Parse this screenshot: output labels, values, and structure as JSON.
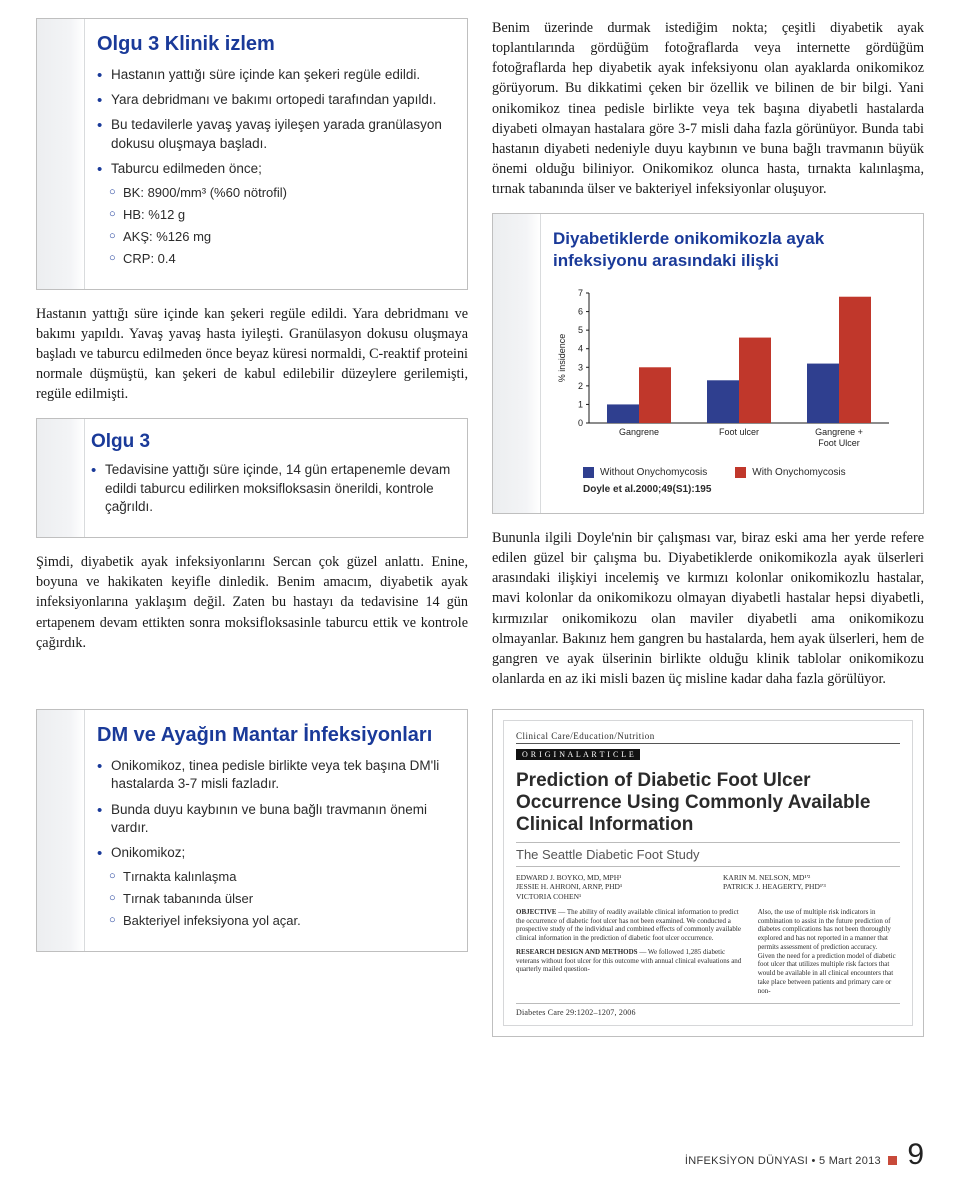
{
  "slide1": {
    "title": "Olgu 3 Klinik izlem",
    "items": [
      "Hastanın yattığı süre içinde kan şekeri regüle edildi.",
      "Yara debridmanı ve bakımı ortopedi tarafından yapıldı.",
      "Bu tedavilerle yavaş yavaş iyileşen yarada granülasyon dokusu oluşmaya başladı.",
      "Taburcu edilmeden önce;"
    ],
    "subitems": [
      "BK: 8900/mm³ (%60 nötrofil)",
      "HB: %12 g",
      "AKŞ: %126 mg",
      "CRP: 0.4"
    ]
  },
  "para1": "Hastanın yattığı süre içinde kan şekeri regüle edildi. Yara debridmanı ve bakımı yapıldı. Yavaş yavaş hasta iyileşti. Granülasyon dokusu oluşmaya başladı ve taburcu edilmeden önce beyaz küresi normaldi, C-reaktif proteini normale düşmüştü, kan şekeri de kabul edilebilir düzeylere gerilemişti, regüle edilmişti.",
  "slide2": {
    "title": "Olgu 3",
    "items": [
      "Tedavisine yattığı süre içinde, 14 gün ertapenemle devam edildi taburcu edilirken moksifloksasin önerildi, kontrole çağrıldı."
    ]
  },
  "para2": "Şimdi, diyabetik ayak infeksiyonlarını Sercan çok güzel anlattı. Enine, boyuna ve hakikaten keyifle dinledik. Benim amacım, diyabetik ayak infeksiyonlarına yaklaşım değil. Zaten bu hastayı da tedavisine 14 gün ertapenem devam ettikten sonra moksifloksasinle taburcu ettik ve kontrole çağırdık.",
  "para_top_right": "Benim üzerinde durmak istediğim nokta; çeşitli diyabetik ayak toplantılarında gördüğüm fotoğraflarda veya internette gördüğüm fotoğraflarda hep diyabetik ayak infeksiyonu olan ayaklarda onikomikoz görüyorum. Bu dikkatimi çeken bir özellik ve bilinen de bir bilgi. Yani onikomikoz tinea pedisle birlikte veya tek başına diyabetli hastalarda diyabeti olmayan hastalara göre 3-7 misli daha fazla görünüyor. Bunda tabi hastanın diyabeti nedeniyle duyu kaybının ve buna bağlı travmanın büyük önemi olduğu biliniyor. Onikomikoz olunca hasta, tırnakta kalınlaşma, tırnak tabanında ülser ve bakteriyel infeksiyonlar oluşuyor.",
  "chart": {
    "title": "Diyabetiklerde onikomikozla ayak infeksiyonu arasındaki ilişki",
    "type": "bar",
    "categories": [
      "Gangrene",
      "Foot ulcer",
      "Gangrene + Foot Ulcer"
    ],
    "series": [
      {
        "name": "Without Onychomycosis",
        "color": "#2f3f8f",
        "values": [
          1.0,
          2.3,
          3.2
        ]
      },
      {
        "name": "With Onychomycosis",
        "color": "#c0372b",
        "values": [
          3.0,
          4.6,
          6.8
        ]
      }
    ],
    "ylabel": "% insidence",
    "ylim": [
      0,
      7
    ],
    "ytick_step": 1,
    "bar_width": 0.32,
    "background_color": "#ffffff",
    "axis_color": "#1a1a1a",
    "label_fontsize": 9,
    "citation": "Doyle et al.2000;49(S1):195"
  },
  "para_right_mid": "Bununla ilgili Doyle'nin bir çalışması var, biraz eski ama her yerde refere edilen güzel bir çalışma bu. Diyabetiklerde onikomikozla ayak ülserleri arasındaki ilişkiyi incelemiş ve kırmızı kolonlar onikomikozlu hastalar, mavi kolonlar da onikomikozu olmayan diyabetli hastalar hepsi diyabetli, kırmızılar onikomikozu olan maviler diyabetli ama onikomikozu olmayanlar. Bakınız hem gangren bu hastalarda, hem ayak ülserleri, hem de gangren ve ayak ülserinin birlikte olduğu klinik tablolar onikomikozu olanlarda en az iki misli bazen üç misline kadar daha fazla görülüyor.",
  "slide_dm": {
    "title": "DM ve Ayağın Mantar İnfeksiyonları",
    "items": [
      "Onikomikoz, tinea pedisle birlikte veya tek başına DM'li hastalarda 3-7 misli fazladır.",
      "Bunda duyu kaybının ve buna bağlı travmanın önemi vardır.",
      "Onikomikoz;"
    ],
    "subitems": [
      "Tırnakta kalınlaşma",
      "Tırnak tabanında  ülser",
      "Bakteriyel infeksiyona yol açar."
    ]
  },
  "paper": {
    "header_small": "Clinical Care/Education/Nutrition",
    "header_bar": "O R I G I N A L   A R T I C L E",
    "title": "Prediction of Diabetic Foot Ulcer Occurrence Using Commonly Available Clinical Information",
    "subtitle": "The Seattle Diabetic Foot Study",
    "authors_left": "EDWARD J. BOYKO, MD, MPH¹\nJESSIE H. AHRONI, ARNP, PHD¹\nVICTORIA COHEN¹",
    "authors_right": "KARIN M. NELSON, MD¹'²\nPATRICK J. HEAGERTY, PHD¹'³",
    "objective_label": "OBJECTIVE",
    "objective": " — The ability of readily available clinical information to predict the occurrence of diabetic foot ulcer has not been examined. We conducted a prospective study of the individual and combined effects of commonly available clinical information in the prediction of diabetic foot ulcer occurrence.",
    "methods_label": "RESEARCH DESIGN AND METHODS",
    "methods": " — We followed 1,285 diabetic veterans without foot ulcer for this outcome with annual clinical evaluations and quarterly mailed question-",
    "right_col": "Also, the use of multiple risk indicators in combination to assist in the future prediction of diabetes complications has not been thoroughly explored and has not reported in a manner that permits assessment of prediction accuracy.\n  Given the need for a prediction model of diabetic foot ulcer that utilizes multiple risk factors that would be available in all clinical encounters that take place between patients and primary care or non-",
    "source": "Diabetes Care 29:1202–1207, 2006"
  },
  "footer": {
    "text": "İNFEKSİYON DÜNYASI • 5 Mart 2013",
    "page": "9",
    "accent": "#c84a3a"
  }
}
